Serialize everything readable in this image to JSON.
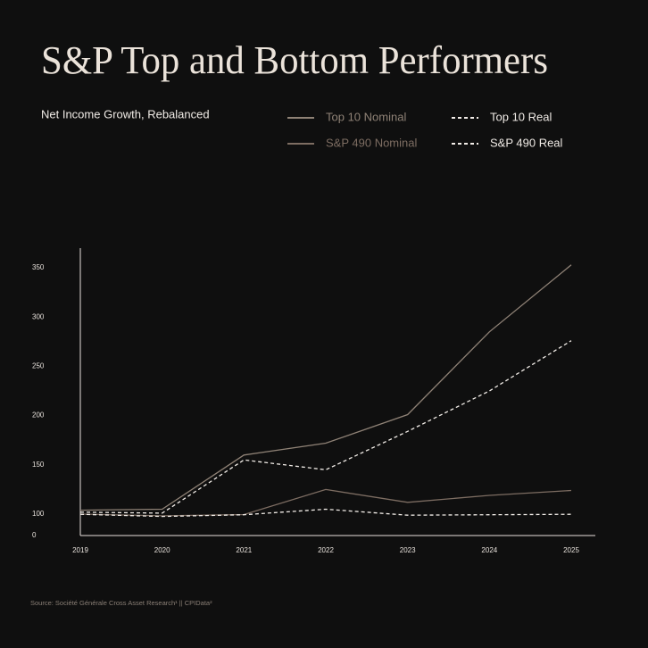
{
  "chart_data": {
    "type": "line",
    "title": "S&P Top and Bottom Performers",
    "subtitle": "Net Income Growth, Rebalanced",
    "source": "Source: Société Générale Cross Asset Research¹  ||  CPIData²",
    "categories": [
      "2019",
      "2020",
      "2021",
      "2022",
      "2023",
      "2024",
      "2025"
    ],
    "series": [
      {
        "name": "Top 10 Nominal",
        "color": "#8f8276",
        "dashed": false,
        "values": [
          104,
          105,
          160,
          172,
          201,
          285,
          353
        ]
      },
      {
        "name": "Top 10 Real",
        "color": "#f2ede8",
        "dashed": true,
        "values": [
          102,
          101,
          155,
          145,
          184,
          225,
          276
        ]
      },
      {
        "name": "S&P 490 Nominal",
        "color": "#7d6d62",
        "dashed": false,
        "values": [
          100,
          92,
          98,
          125,
          112,
          119,
          124
        ]
      },
      {
        "name": "S&P 490 Real",
        "color": "#f2ede8",
        "dashed": true,
        "values": [
          99,
          89,
          97,
          105,
          95,
          97,
          99
        ]
      }
    ],
    "ylim": [
      0,
      370
    ],
    "yticks": [
      0,
      100,
      150,
      200,
      250,
      300,
      350
    ],
    "y_break": true
  }
}
